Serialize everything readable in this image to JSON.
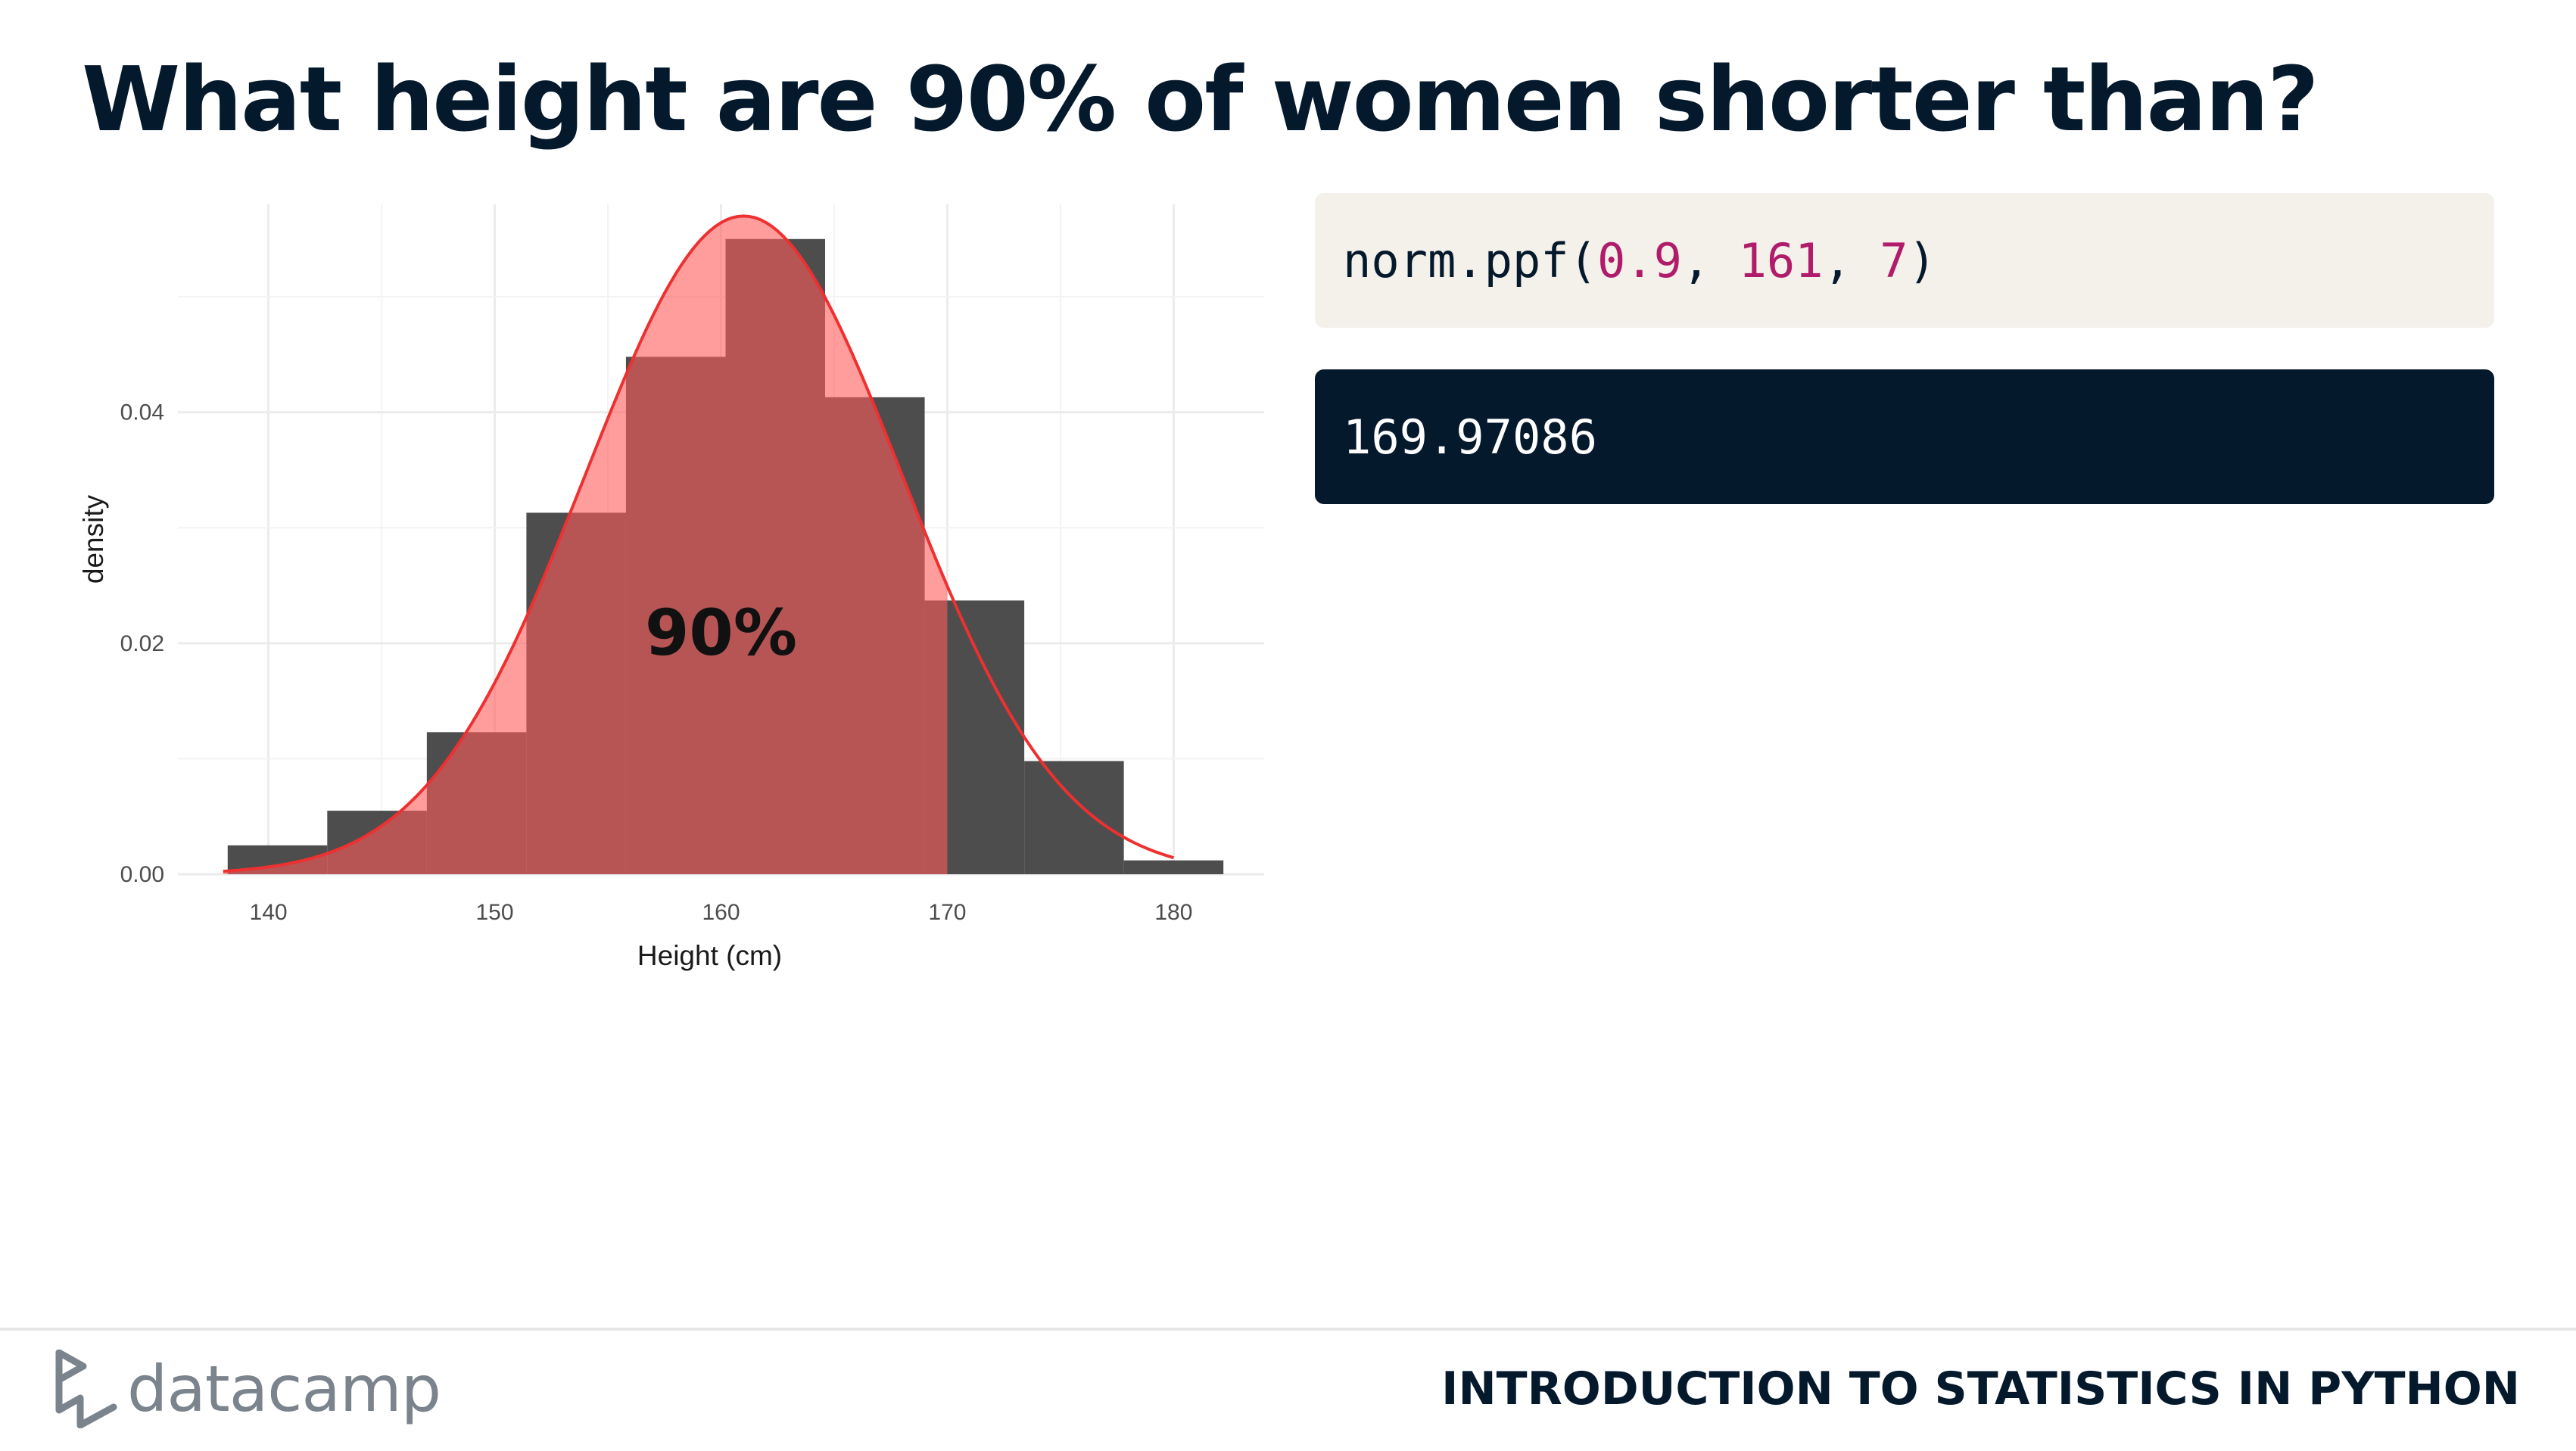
{
  "slide": {
    "title": "What height are 90% of women shorter than?"
  },
  "code": {
    "fn": "norm.ppf(",
    "arg1": "0.9",
    "sep1": ", ",
    "arg2": "161",
    "sep2": ", ",
    "arg3": "7",
    "close": ")"
  },
  "output": {
    "value": "169.97086"
  },
  "footer": {
    "logo_text": "datacamp",
    "course": "INTRODUCTION TO STATISTICS IN PYTHON"
  },
  "colors": {
    "title": "#05192d",
    "code_bg": "#f4f0ea",
    "code_number": "#b01c6a",
    "output_bg": "#05192d",
    "bar": "#4d4d4d",
    "shade": "#ff5c5c",
    "curve": "#ee3030",
    "logo": "#7b838c"
  },
  "chart_data": {
    "type": "histogram",
    "xlabel": "Height (cm)",
    "ylabel": "density",
    "xlim": [
      136,
      184
    ],
    "ylim": [
      0,
      0.058
    ],
    "x_ticks": [
      140,
      150,
      160,
      170,
      180
    ],
    "y_ticks": [
      0.0,
      0.02,
      0.04
    ],
    "y_tick_labels": [
      "0.00",
      "0.02",
      "0.04"
    ],
    "grid": true,
    "bins": [
      {
        "start": 138.2,
        "end": 142.6,
        "density": 0.0025
      },
      {
        "start": 142.6,
        "end": 147.0,
        "density": 0.0055
      },
      {
        "start": 147.0,
        "end": 151.4,
        "density": 0.0123
      },
      {
        "start": 151.4,
        "end": 155.8,
        "density": 0.0313
      },
      {
        "start": 155.8,
        "end": 160.2,
        "density": 0.0448
      },
      {
        "start": 160.2,
        "end": 164.6,
        "density": 0.055
      },
      {
        "start": 164.6,
        "end": 169.0,
        "density": 0.0413
      },
      {
        "start": 169.0,
        "end": 173.4,
        "density": 0.0237
      },
      {
        "start": 173.4,
        "end": 177.8,
        "density": 0.0098
      },
      {
        "start": 177.8,
        "end": 182.2,
        "density": 0.0012
      }
    ],
    "normal_curve": {
      "mean": 161,
      "sd": 7,
      "from": 138,
      "to": 180
    },
    "shaded_upto": 170,
    "annotation": "90%",
    "annotation_x": 160
  }
}
